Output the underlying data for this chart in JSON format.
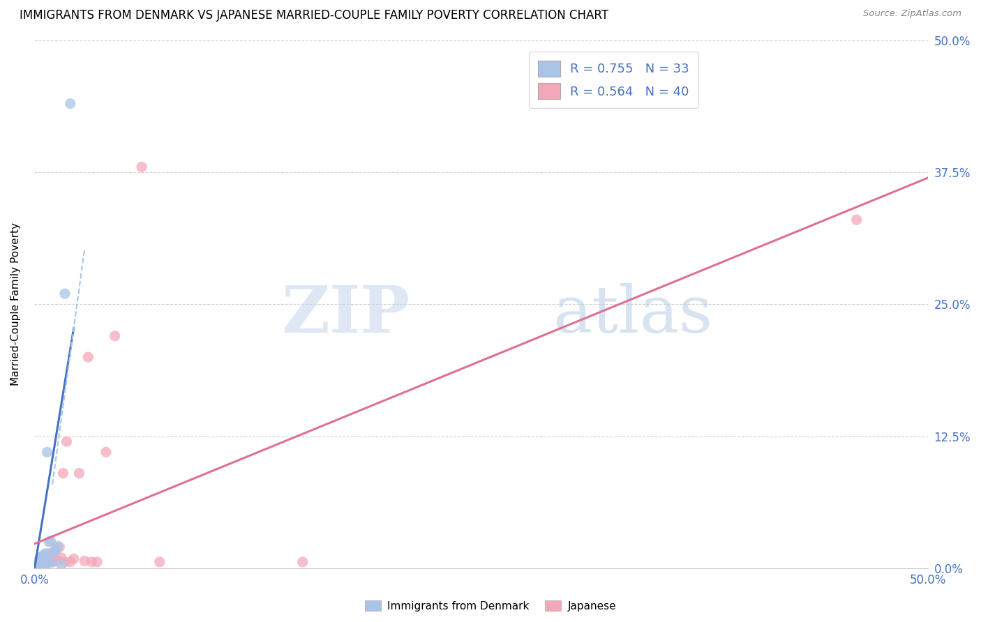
{
  "title": "IMMIGRANTS FROM DENMARK VS JAPANESE MARRIED-COUPLE FAMILY POVERTY CORRELATION CHART",
  "source": "Source: ZipAtlas.com",
  "ylabel": "Married-Couple Family Poverty",
  "xlim": [
    0.0,
    0.5
  ],
  "ylim": [
    0.0,
    0.5
  ],
  "xticks": [
    0.0,
    0.125,
    0.25,
    0.375,
    0.5
  ],
  "yticks": [
    0.0,
    0.125,
    0.25,
    0.375,
    0.5
  ],
  "xticklabels": [
    "0.0%",
    "",
    "",
    "",
    "50.0%"
  ],
  "right_yticklabels": [
    "0.0%",
    "12.5%",
    "25.0%",
    "37.5%",
    "50.0%"
  ],
  "denmark_color": "#aac4e8",
  "japanese_color": "#f4a7b9",
  "denmark_line_color": "#4472c4",
  "japanese_line_color": "#e07090",
  "denmark_R": 0.755,
  "denmark_N": 33,
  "japanese_R": 0.564,
  "japanese_N": 40,
  "legend_label_1": "Immigrants from Denmark",
  "legend_label_2": "Japanese",
  "watermark_zip": "ZIP",
  "watermark_atlas": "atlas",
  "background_color": "#ffffff",
  "grid_color": "#cccccc",
  "title_fontsize": 12,
  "axis_label_fontsize": 11,
  "tick_color": "#4472c4",
  "denmark_x": [
    0.001,
    0.001,
    0.001,
    0.002,
    0.002,
    0.002,
    0.002,
    0.003,
    0.003,
    0.003,
    0.003,
    0.003,
    0.003,
    0.004,
    0.004,
    0.004,
    0.005,
    0.005,
    0.005,
    0.006,
    0.006,
    0.006,
    0.007,
    0.007,
    0.008,
    0.009,
    0.01,
    0.011,
    0.012,
    0.013,
    0.015,
    0.017,
    0.02
  ],
  "denmark_y": [
    0.001,
    0.002,
    0.003,
    0.001,
    0.003,
    0.005,
    0.007,
    0.002,
    0.003,
    0.004,
    0.006,
    0.008,
    0.01,
    0.002,
    0.004,
    0.011,
    0.003,
    0.005,
    0.012,
    0.003,
    0.01,
    0.014,
    0.004,
    0.11,
    0.025,
    0.026,
    0.006,
    0.016,
    0.017,
    0.021,
    0.003,
    0.26,
    0.44
  ],
  "japanese_x": [
    0.001,
    0.001,
    0.002,
    0.002,
    0.003,
    0.003,
    0.004,
    0.004,
    0.005,
    0.005,
    0.006,
    0.006,
    0.007,
    0.007,
    0.008,
    0.008,
    0.009,
    0.01,
    0.01,
    0.011,
    0.012,
    0.013,
    0.014,
    0.015,
    0.016,
    0.017,
    0.018,
    0.02,
    0.022,
    0.025,
    0.028,
    0.03,
    0.032,
    0.035,
    0.04,
    0.045,
    0.06,
    0.07,
    0.15,
    0.46
  ],
  "japanese_y": [
    0.002,
    0.004,
    0.003,
    0.006,
    0.003,
    0.005,
    0.003,
    0.007,
    0.004,
    0.008,
    0.004,
    0.009,
    0.005,
    0.011,
    0.006,
    0.014,
    0.009,
    0.006,
    0.013,
    0.016,
    0.018,
    0.007,
    0.02,
    0.01,
    0.09,
    0.006,
    0.12,
    0.006,
    0.009,
    0.09,
    0.007,
    0.2,
    0.006,
    0.006,
    0.11,
    0.22,
    0.38,
    0.006,
    0.006,
    0.33
  ]
}
